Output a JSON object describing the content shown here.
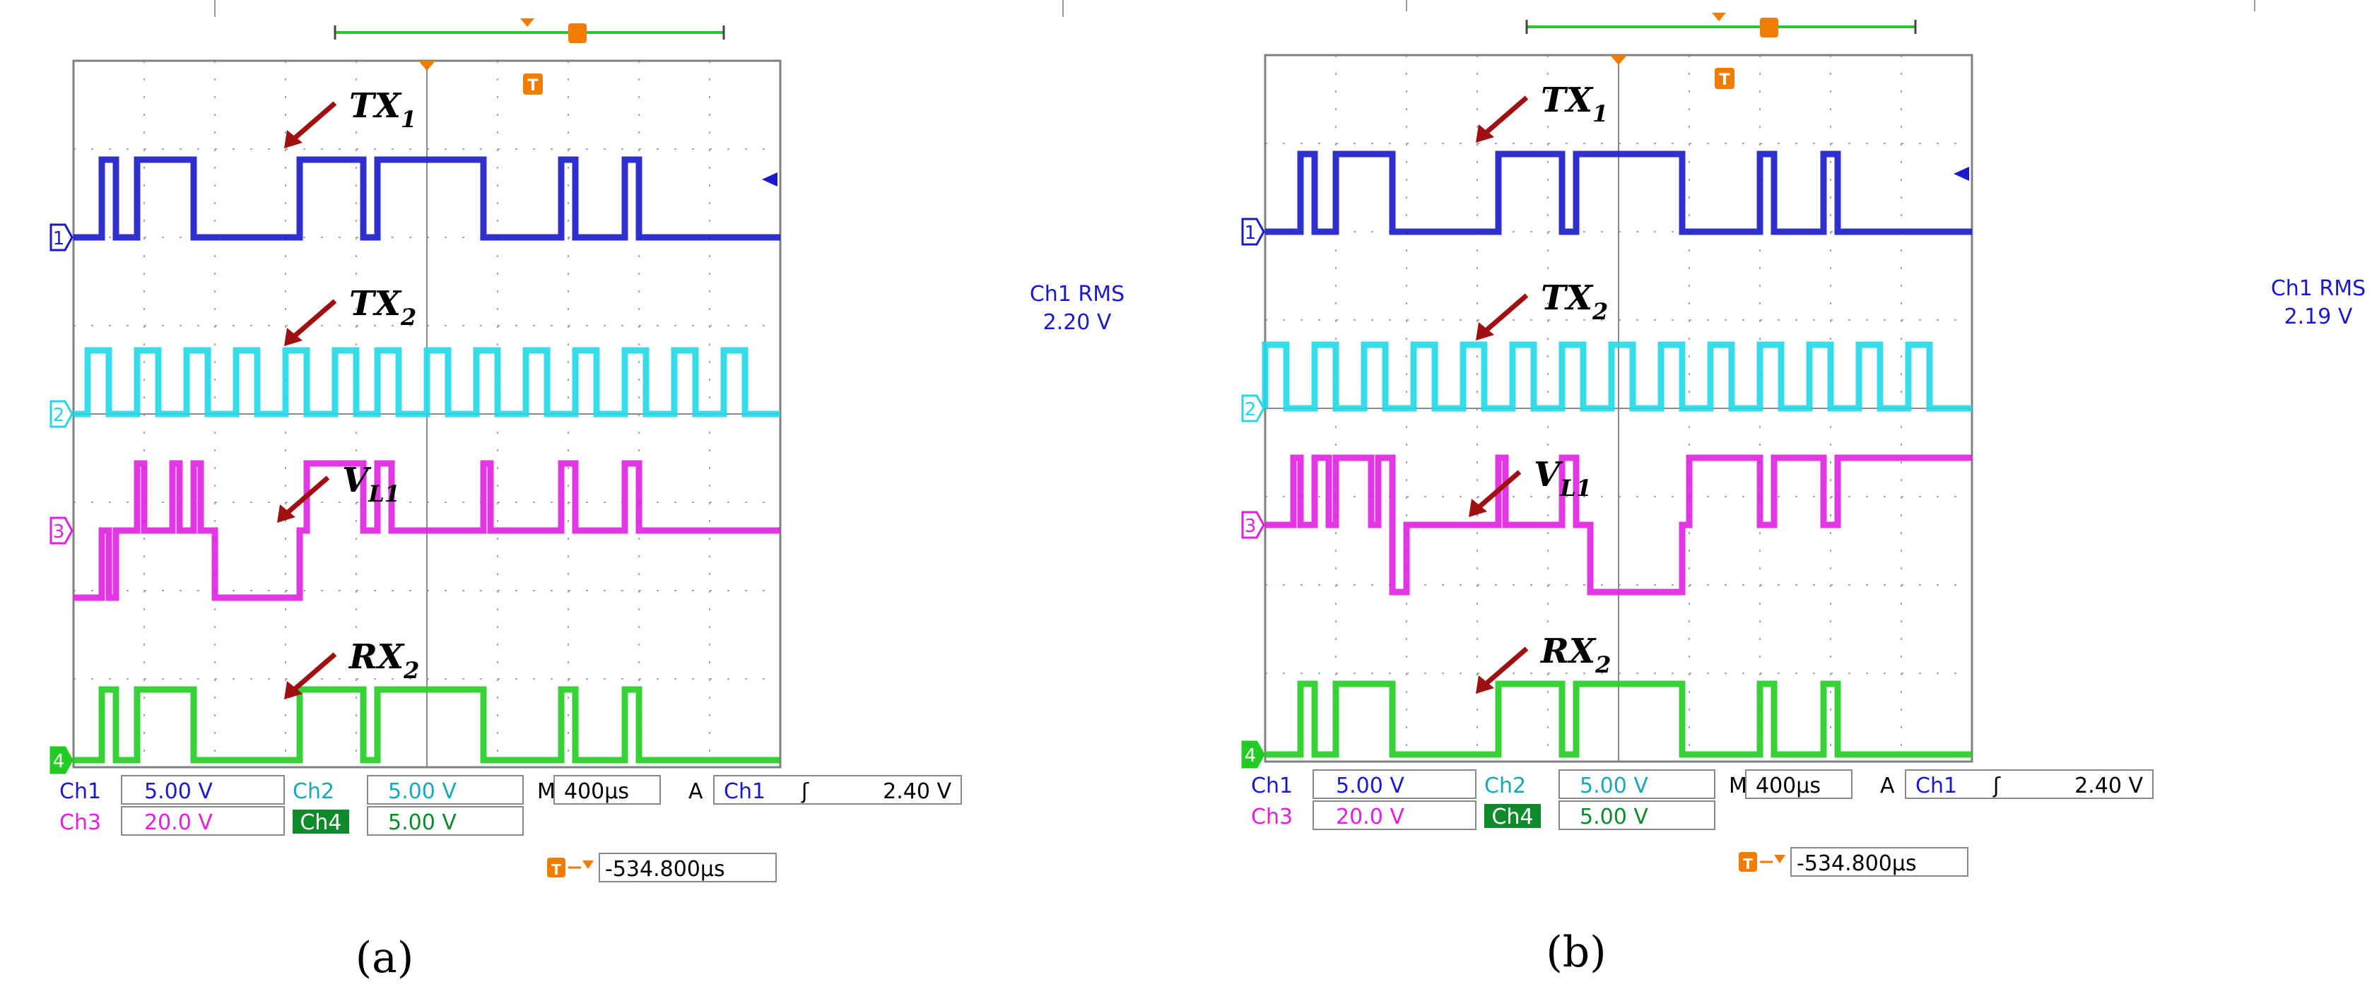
{
  "colors": {
    "ch1": "#1a1acc",
    "ch2": "#22d8e6",
    "ch3": "#e020e0",
    "ch4": "#22cc22",
    "arrow": "#a01010",
    "grid": "#808080",
    "trigger": "#f07d00",
    "background": "#ffffff"
  },
  "panels": [
    {
      "caption": "(a)",
      "trace_labels": [
        {
          "main": "TX",
          "sub": "1"
        },
        {
          "main": "TX",
          "sub": "2"
        },
        {
          "main": "V",
          "sub": "L1"
        },
        {
          "main": "RX",
          "sub": "2"
        }
      ],
      "channel_markers": [
        "1",
        "2",
        "3",
        "4"
      ],
      "measurement": {
        "label": "Ch1 RMS",
        "value": "2.20 V"
      },
      "readouts": {
        "ch1_name": "Ch1",
        "ch1_scale": "5.00 V",
        "ch2_name": "Ch2",
        "ch2_scale": "5.00 V",
        "ch3_name": "Ch3",
        "ch3_scale": "20.0 V",
        "ch4_name": "Ch4",
        "ch4_scale": "5.00 V",
        "time_prefix": "M",
        "time_div": "400µs",
        "trig_prefix": "A",
        "trig_source": "Ch1",
        "trig_slope_symbol": "ʃ",
        "trig_level": "2.40 V",
        "trig_marker": "T",
        "trig_offset": "-534.800µs"
      }
    },
    {
      "caption": "(b)",
      "trace_labels": [
        {
          "main": "TX",
          "sub": "1"
        },
        {
          "main": "TX",
          "sub": "2"
        },
        {
          "main": "V",
          "sub": "L1"
        },
        {
          "main": "RX",
          "sub": "2"
        }
      ],
      "channel_markers": [
        "1",
        "2",
        "3",
        "4"
      ],
      "measurement": {
        "label": "Ch1 RMS",
        "value": "2.19 V"
      },
      "readouts": {
        "ch1_name": "Ch1",
        "ch1_scale": "5.00 V",
        "ch2_name": "Ch2",
        "ch2_scale": "5.00 V",
        "ch3_name": "Ch3",
        "ch3_scale": "20.0 V",
        "ch4_name": "Ch4",
        "ch4_scale": "5.00 V",
        "time_prefix": "M",
        "time_div": "400µs",
        "trig_prefix": "A",
        "trig_source": "Ch1",
        "trig_slope_symbol": "ʃ",
        "trig_level": "2.40 V",
        "trig_marker": "T",
        "trig_offset": "-534.800µs"
      }
    }
  ],
  "chart_data": [
    {
      "type": "line",
      "grid": true,
      "series": [
        {
          "name": "TX1",
          "channel": 1,
          "x": [
            0,
            0.4,
            0.4,
            0.6,
            0.6,
            0.9,
            0.9,
            1.7,
            1.7,
            3.2,
            3.2,
            4.1,
            4.1,
            4.3,
            4.3,
            5.8,
            5.8,
            6.9,
            6.9,
            7.1,
            7.1,
            7.8,
            7.8,
            8.0,
            8.0,
            10.0
          ],
          "y": [
            0,
            0,
            1,
            1,
            0,
            0,
            1,
            1,
            0,
            0,
            1,
            1,
            0,
            0,
            1,
            1,
            0,
            0,
            1,
            1,
            0,
            0,
            1,
            1,
            0,
            0
          ]
        },
        {
          "name": "TX2",
          "channel": 2,
          "x": [
            0,
            0.2,
            0.2,
            0.5,
            0.5,
            0.9,
            0.9,
            1.2,
            1.2,
            1.6,
            1.6,
            1.9,
            1.9,
            2.3,
            2.3,
            2.6,
            2.6,
            3.0,
            3.0,
            3.3,
            3.3,
            3.7,
            3.7,
            4.0,
            4.0,
            4.3,
            4.3,
            4.6,
            4.6,
            5.0,
            5.0,
            5.3,
            5.3,
            5.7,
            5.7,
            6.0,
            6.0,
            6.4,
            6.4,
            6.7,
            6.7,
            7.1,
            7.1,
            7.4,
            7.4,
            7.8,
            7.8,
            8.1,
            8.1,
            8.5,
            8.5,
            8.8,
            8.8,
            9.2,
            9.2,
            9.5,
            9.5,
            10.0
          ],
          "y": [
            0,
            0,
            1,
            1,
            0,
            0,
            1,
            1,
            0,
            0,
            1,
            1,
            0,
            0,
            1,
            1,
            0,
            0,
            1,
            1,
            0,
            0,
            1,
            1,
            0,
            0,
            1,
            1,
            0,
            0,
            1,
            1,
            0,
            0,
            1,
            1,
            0,
            0,
            1,
            1,
            0,
            0,
            1,
            1,
            0,
            0,
            1,
            1,
            0,
            0,
            1,
            1,
            0,
            0,
            1,
            1,
            0,
            0
          ]
        },
        {
          "name": "VL1",
          "channel": 3,
          "x": [
            0,
            0.4,
            0.4,
            0.5,
            0.5,
            0.6,
            0.6,
            0.9,
            0.9,
            1.0,
            1.0,
            1.4,
            1.4,
            1.5,
            1.5,
            1.7,
            1.7,
            1.8,
            1.8,
            2.0,
            2.0,
            3.2,
            3.2,
            3.3,
            3.3,
            4.1,
            4.1,
            4.3,
            4.3,
            4.5,
            4.5,
            5.8,
            5.8,
            5.9,
            5.9,
            6.9,
            6.9,
            7.1,
            7.1,
            7.8,
            7.8,
            8.0,
            8.0,
            10.0
          ],
          "y": [
            -1,
            -1,
            0,
            0,
            -1,
            -1,
            0,
            0,
            1,
            1,
            0,
            0,
            1,
            1,
            0,
            0,
            1,
            1,
            0,
            0,
            -1,
            -1,
            0,
            0,
            1,
            1,
            0,
            0,
            1,
            1,
            0,
            0,
            1,
            1,
            0,
            0,
            1,
            1,
            0,
            0,
            1,
            1,
            0,
            0
          ]
        },
        {
          "name": "RX2",
          "channel": 4,
          "x": [
            0,
            0.4,
            0.4,
            0.6,
            0.6,
            0.9,
            0.9,
            1.7,
            1.7,
            3.2,
            3.2,
            4.1,
            4.1,
            4.3,
            4.3,
            5.8,
            5.8,
            6.9,
            6.9,
            7.1,
            7.1,
            7.8,
            7.8,
            8.0,
            8.0,
            10.0
          ],
          "y": [
            0,
            0,
            1,
            1,
            0,
            0,
            1,
            1,
            0,
            0,
            1,
            1,
            0,
            0,
            1,
            1,
            0,
            0,
            1,
            1,
            0,
            0,
            1,
            1,
            0,
            0
          ]
        }
      ]
    },
    {
      "type": "line",
      "grid": true,
      "series": [
        {
          "name": "TX1",
          "channel": 1,
          "x": [
            0,
            0.5,
            0.5,
            0.7,
            0.7,
            1.0,
            1.0,
            1.8,
            1.8,
            3.3,
            3.3,
            4.2,
            4.2,
            4.4,
            4.4,
            5.9,
            5.9,
            7.0,
            7.0,
            7.2,
            7.2,
            7.9,
            7.9,
            8.1,
            8.1,
            10.0
          ],
          "y": [
            0,
            0,
            1,
            1,
            0,
            0,
            1,
            1,
            0,
            0,
            1,
            1,
            0,
            0,
            1,
            1,
            0,
            0,
            1,
            1,
            0,
            0,
            1,
            1,
            0,
            0
          ]
        },
        {
          "name": "TX2",
          "channel": 2,
          "x": [
            0,
            0.0,
            0.0,
            0.3,
            0.3,
            0.7,
            0.7,
            1.0,
            1.0,
            1.4,
            1.4,
            1.7,
            1.7,
            2.1,
            2.1,
            2.4,
            2.4,
            2.8,
            2.8,
            3.1,
            3.1,
            3.5,
            3.5,
            3.8,
            3.8,
            4.2,
            4.2,
            4.5,
            4.5,
            4.9,
            4.9,
            5.2,
            5.2,
            5.6,
            5.6,
            5.9,
            5.9,
            6.3,
            6.3,
            6.6,
            6.6,
            7.0,
            7.0,
            7.3,
            7.3,
            7.7,
            7.7,
            8.0,
            8.0,
            8.4,
            8.4,
            8.7,
            8.7,
            9.1,
            9.1,
            9.4,
            9.4,
            10.0
          ],
          "y": [
            0,
            0,
            1,
            1,
            0,
            0,
            1,
            1,
            0,
            0,
            1,
            1,
            0,
            0,
            1,
            1,
            0,
            0,
            1,
            1,
            0,
            0,
            1,
            1,
            0,
            0,
            1,
            1,
            0,
            0,
            1,
            1,
            0,
            0,
            1,
            1,
            0,
            0,
            1,
            1,
            0,
            0,
            1,
            1,
            0,
            0,
            1,
            1,
            0,
            0,
            1,
            1,
            0,
            0,
            1,
            1,
            0,
            0
          ]
        },
        {
          "name": "VL1",
          "channel": 3,
          "x": [
            0,
            0.4,
            0.4,
            0.5,
            0.5,
            0.7,
            0.7,
            0.9,
            0.9,
            1.0,
            1.0,
            1.5,
            1.5,
            1.6,
            1.6,
            1.8,
            1.8,
            2.0,
            2.0,
            3.3,
            3.3,
            3.4,
            3.4,
            4.2,
            4.2,
            4.4,
            4.4,
            4.6,
            4.6,
            5.9,
            5.9,
            6.0,
            6.0,
            7.0,
            7.0,
            7.2,
            7.2,
            7.9,
            7.9,
            8.1,
            8.1,
            10.0
          ],
          "y": [
            0,
            0,
            1,
            1,
            0,
            0,
            1,
            1,
            0,
            0,
            1,
            1,
            0,
            0,
            1,
            1,
            -1,
            -1,
            0,
            0,
            1,
            1,
            0,
            0,
            1,
            1,
            0,
            0,
            -1,
            -1,
            0,
            0,
            1,
            1,
            0,
            0,
            1,
            1,
            0,
            0,
            1,
            1
          ]
        },
        {
          "name": "RX2",
          "channel": 4,
          "x": [
            0,
            0.5,
            0.5,
            0.7,
            0.7,
            1.0,
            1.0,
            1.8,
            1.8,
            3.3,
            3.3,
            4.2,
            4.2,
            4.4,
            4.4,
            5.9,
            5.9,
            7.0,
            7.0,
            7.2,
            7.2,
            7.9,
            7.9,
            8.1,
            8.1,
            10.0
          ],
          "y": [
            0,
            0,
            1,
            1,
            0,
            0,
            1,
            1,
            0,
            0,
            1,
            1,
            0,
            0,
            1,
            1,
            0,
            0,
            1,
            1,
            0,
            0,
            1,
            1,
            0,
            0
          ]
        }
      ]
    }
  ]
}
